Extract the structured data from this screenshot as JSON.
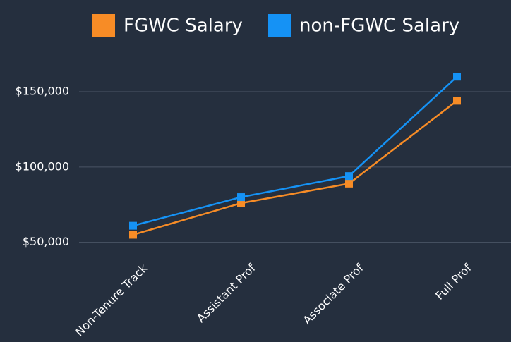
{
  "chart_data": {
    "type": "line",
    "categories": [
      "Non-Tenure Track",
      "Assistant Prof",
      "Associate Prof",
      "Full Prof"
    ],
    "series": [
      {
        "name": "FGWC Salary",
        "color": "#f78c26",
        "values": [
          55000,
          76000,
          89000,
          144000
        ]
      },
      {
        "name": "non-FGWC Salary",
        "color": "#1592f5",
        "values": [
          61000,
          80000,
          94000,
          160000
        ]
      }
    ],
    "ylim": [
      40000,
      165000
    ],
    "yticks": [
      {
        "value": 50000,
        "label": "$50,000"
      },
      {
        "value": 100000,
        "label": "$100,000"
      },
      {
        "value": 150000,
        "label": "$150,000"
      }
    ],
    "grid": true,
    "legend": "top"
  }
}
